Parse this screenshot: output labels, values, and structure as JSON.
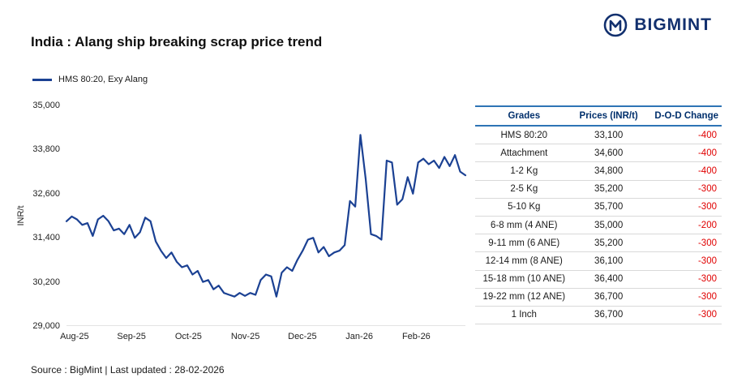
{
  "header": {
    "title": "India : Alang ship breaking scrap price trend",
    "logo_text": "BIGMINT",
    "logo_color": "#12306e"
  },
  "legend": {
    "label": "HMS 80:20, Exy Alang"
  },
  "chart_data": {
    "type": "line",
    "title": "India : Alang ship breaking scrap price trend",
    "xlabel": "",
    "ylabel": "INR/t",
    "ylim": [
      29000,
      35000
    ],
    "yticks": [
      "35,000",
      "33,800",
      "32,600",
      "31,400",
      "30,200",
      "29,000"
    ],
    "xticks": [
      "Aug-25",
      "Sep-25",
      "Oct-25",
      "Nov-25",
      "Dec-25",
      "Jan-26",
      "Feb-26"
    ],
    "grid": false,
    "legend_position": "top-left",
    "line_color": "#1b4193",
    "series": [
      {
        "name": "HMS 80:20, Exy Alang",
        "values": [
          31850,
          31980,
          31900,
          31750,
          31800,
          31450,
          31900,
          32000,
          31850,
          31600,
          31650,
          31500,
          31750,
          31400,
          31550,
          31950,
          31850,
          31300,
          31050,
          30850,
          31000,
          30750,
          30600,
          30650,
          30400,
          30500,
          30200,
          30250,
          30000,
          30100,
          29900,
          29850,
          29800,
          29900,
          29820,
          29900,
          29850,
          30250,
          30400,
          30350,
          29800,
          30450,
          30600,
          30500,
          30800,
          31050,
          31350,
          31400,
          31000,
          31150,
          30900,
          31000,
          31050,
          31200,
          32400,
          32250,
          34200,
          33000,
          31500,
          31450,
          31350,
          33500,
          33450,
          32300,
          32450,
          33050,
          32600,
          33450,
          33550,
          33400,
          33500,
          33300,
          33600,
          33350,
          33650,
          33200,
          33100
        ]
      }
    ]
  },
  "table": {
    "headers": [
      "Grades",
      "Prices (INR/t)",
      "D-O-D Change"
    ],
    "header_color": "#002f6c",
    "change_color": "#e00000",
    "rows": [
      {
        "grade": "HMS 80:20",
        "price": "33,100",
        "change": "-400"
      },
      {
        "grade": "Attachment",
        "price": "34,600",
        "change": "-400"
      },
      {
        "grade": "1-2 Kg",
        "price": "34,800",
        "change": "-400"
      },
      {
        "grade": "2-5 Kg",
        "price": "35,200",
        "change": "-300"
      },
      {
        "grade": "5-10 Kg",
        "price": "35,700",
        "change": "-300"
      },
      {
        "grade": "6-8 mm (4 ANE)",
        "price": "35,000",
        "change": "-200"
      },
      {
        "grade": "9-11 mm (6 ANE)",
        "price": "35,200",
        "change": "-300"
      },
      {
        "grade": "12-14 mm (8 ANE)",
        "price": "36,100",
        "change": "-300"
      },
      {
        "grade": "15-18 mm (10 ANE)",
        "price": "36,400",
        "change": "-300"
      },
      {
        "grade": "19-22 mm (12 ANE)",
        "price": "36,700",
        "change": "-300"
      },
      {
        "grade": "1 Inch",
        "price": "36,700",
        "change": "-300"
      }
    ]
  },
  "footer": {
    "source_line": "Source : BigMint | Last updated : 28-02-2026"
  }
}
